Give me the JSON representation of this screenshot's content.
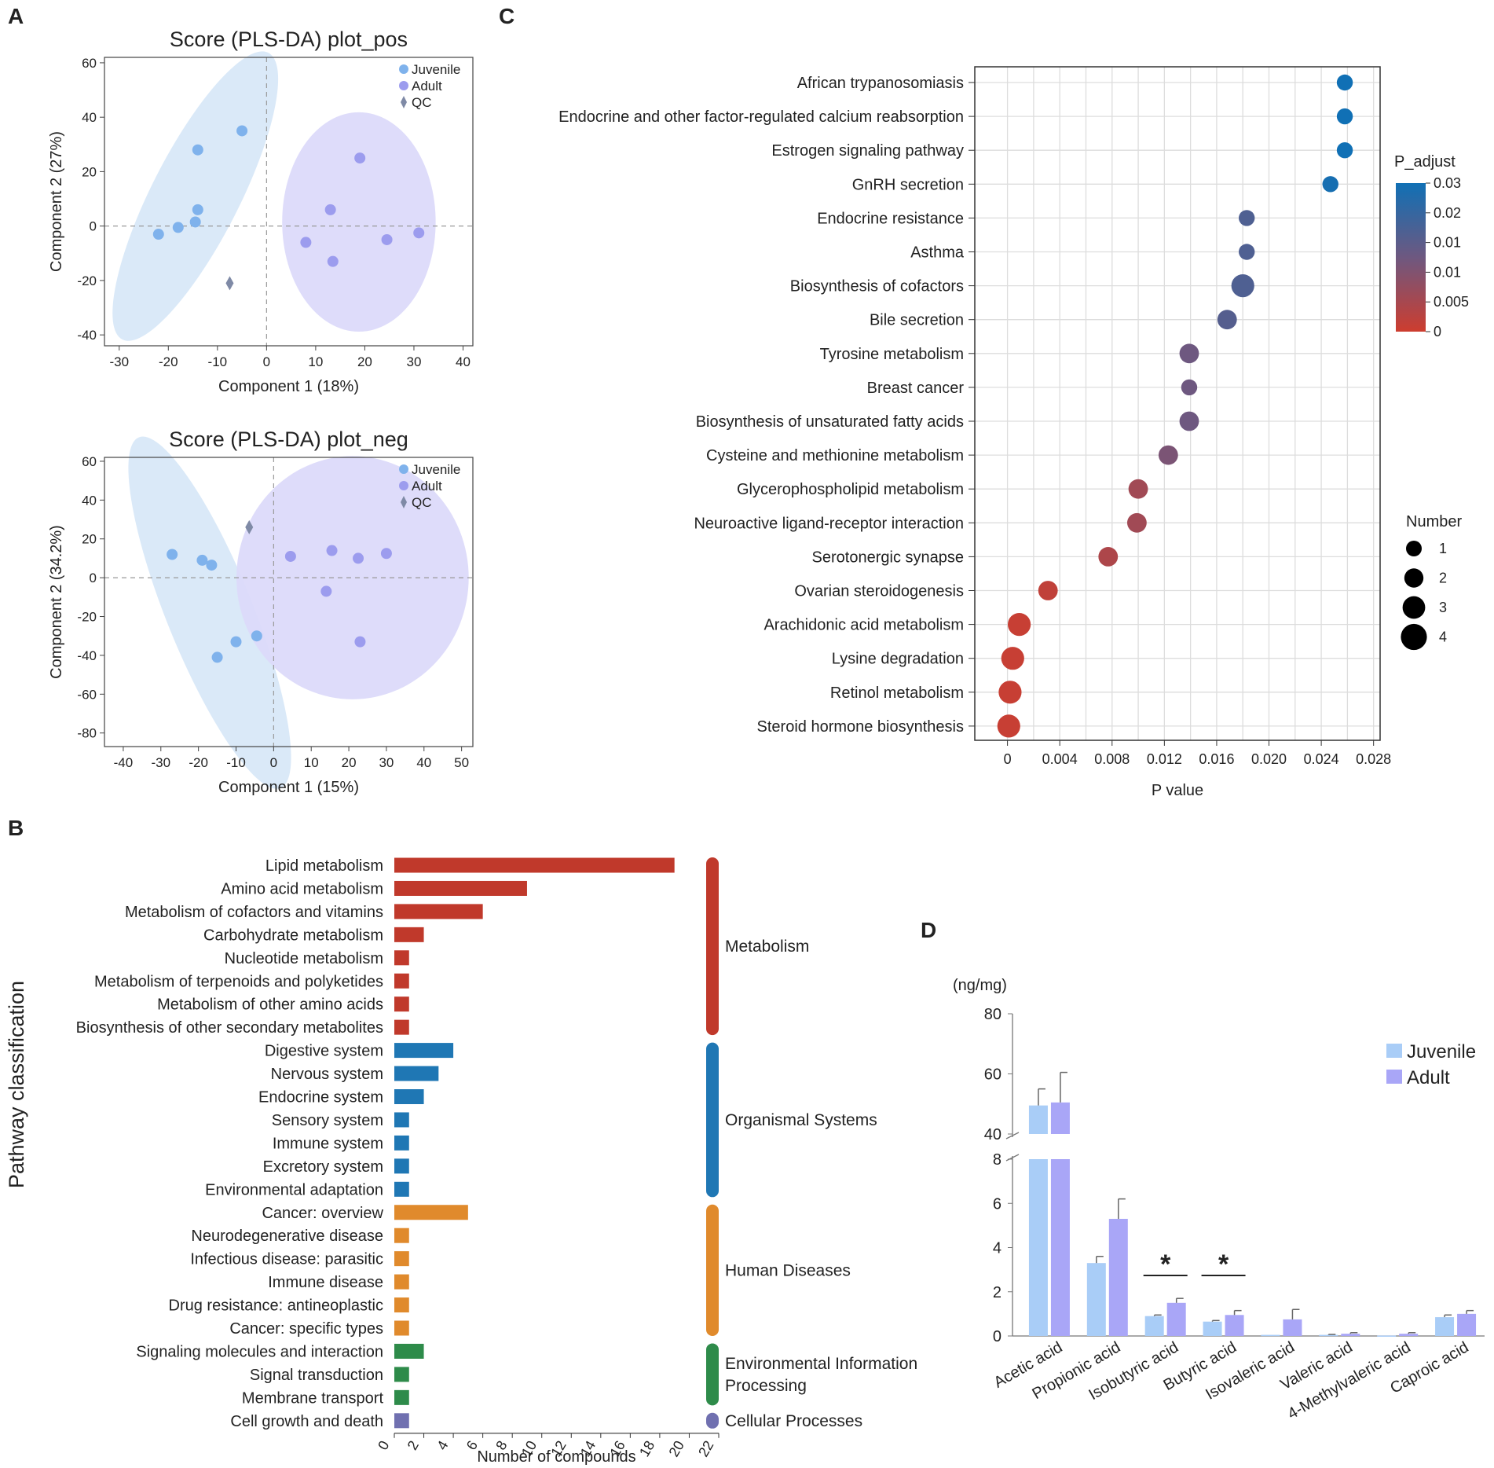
{
  "panel_labels": {
    "a": "A",
    "b": "B",
    "c": "C",
    "d": "D"
  },
  "colors": {
    "juvenile": "#7fb2ec",
    "adult": "#9c9cee",
    "juvenile_ellipse": "#d8e8f8",
    "adult_ellipse": "#dcdafa",
    "qc": "#7f8aa6",
    "metabolism": "#c0392b",
    "organismal": "#1f77b4",
    "human_diseases": "#e08a2c",
    "env_info": "#2e8b4a",
    "cellular": "#7070b0",
    "term_blue": "#1aa3d6",
    "term_black": "#222222",
    "term_red": "#d0202a",
    "bar_juvenile": "#a9cdf7",
    "bar_adult": "#a9a6f7"
  },
  "chart_data": [
    {
      "id": "pos",
      "type": "scatter",
      "title": "Score (PLS-DA) plot_pos",
      "xlabel": "Component 1 (18%)",
      "ylabel": "Component 2 (27%)",
      "xlim": [
        -33,
        42
      ],
      "ylim": [
        -44,
        62
      ],
      "xticks": [
        -30,
        -20,
        -10,
        0,
        10,
        20,
        30,
        40
      ],
      "xtick_labels": [
        "-30",
        "-20",
        "-10",
        "0",
        "10",
        "20",
        "30",
        "40"
      ],
      "yticks": [
        60,
        40,
        20,
        0,
        -20,
        -40
      ],
      "ytick_labels": [
        "60",
        "40",
        "20",
        "0",
        "-20",
        "-40"
      ],
      "legend": [
        "Juvenile",
        "Adult",
        "QC"
      ],
      "series": [
        {
          "name": "Juvenile",
          "points": [
            [
              -5,
              35
            ],
            [
              -14,
              28
            ],
            [
              -14,
              6
            ],
            [
              -14.5,
              1.5
            ],
            [
              -18,
              -0.5
            ],
            [
              -22,
              -3
            ]
          ]
        },
        {
          "name": "Adult",
          "points": [
            [
              19,
              25
            ],
            [
              13,
              6
            ],
            [
              8,
              -6
            ],
            [
              13.5,
              -13
            ],
            [
              24.5,
              -5
            ],
            [
              31,
              -2.5
            ]
          ]
        },
        {
          "name": "QC",
          "points": [
            [
              -7.5,
              -21
            ]
          ]
        }
      ],
      "ellipses": [
        {
          "group": "Juvenile",
          "cx": -14.5,
          "cy": 11,
          "rx": 44,
          "ry": 12,
          "angle": 63
        },
        {
          "group": "Adult",
          "cx": 18.8,
          "cy": 1.5,
          "rx": 21,
          "ry": 30,
          "angle": 0
        }
      ]
    },
    {
      "id": "neg",
      "type": "scatter",
      "title": "Score (PLS-DA) plot_neg",
      "xlabel": "Component 1 (15%)",
      "ylabel": "Component 2 (34.2%)",
      "xlim": [
        -45,
        53
      ],
      "ylim": [
        -87,
        62
      ],
      "xticks": [
        -40,
        -30,
        -20,
        -10,
        0,
        10,
        20,
        30,
        40,
        50
      ],
      "xtick_labels": [
        "-40",
        "-30",
        "-20",
        "-10",
        "0",
        "10",
        "20",
        "30",
        "40",
        "50"
      ],
      "yticks": [
        60,
        40,
        20,
        0,
        -20,
        -40,
        -60,
        -80
      ],
      "ytick_labels": [
        "60",
        "40",
        "20",
        "0",
        "-20",
        "-40",
        "-60",
        "-80"
      ],
      "legend": [
        "Juvenile",
        "Adult",
        "QC"
      ],
      "series": [
        {
          "name": "Juvenile",
          "points": [
            [
              -27,
              12
            ],
            [
              -19,
              9
            ],
            [
              -16.5,
              6.5
            ],
            [
              -10,
              -33
            ],
            [
              -4.5,
              -30
            ],
            [
              -15,
              -41
            ]
          ]
        },
        {
          "name": "Adult",
          "points": [
            [
              4.5,
              11
            ],
            [
              15.5,
              14
            ],
            [
              22.5,
              10
            ],
            [
              30,
              12.5
            ],
            [
              14,
              -7
            ],
            [
              23,
              -33
            ]
          ]
        },
        {
          "name": "QC",
          "points": [
            [
              -6.5,
              26
            ]
          ]
        }
      ],
      "ellipses": [
        {
          "group": "Juvenile",
          "cx": -17,
          "cy": -18,
          "rx": 70,
          "ry": 16,
          "angle": -68
        },
        {
          "group": "Adult",
          "cx": 21,
          "cy": 0,
          "rx": 43,
          "ry": 45,
          "angle": 0
        }
      ]
    },
    {
      "id": "classification",
      "type": "bar",
      "orientation": "horizontal",
      "ylabel": "Pathway classification",
      "xlabel": "Number of compounds",
      "xlim": [
        0,
        22
      ],
      "xticks": [
        0,
        2,
        4,
        6,
        8,
        10,
        12,
        14,
        16,
        18,
        20,
        22
      ],
      "xtick_labels": [
        "0",
        "2",
        "4",
        "6",
        "8",
        "10",
        "12",
        "14",
        "16",
        "18",
        "20",
        "22"
      ],
      "categories": [
        "Lipid metabolism",
        "Amino acid metabolism",
        "Metabolism of cofactors and vitamins",
        "Carbohydrate metabolism",
        "Nucleotide metabolism",
        "Metabolism of terpenoids and polyketides",
        "Metabolism of other amino acids",
        "Biosynthesis of other secondary metabolites",
        "Digestive system",
        "Nervous system",
        "Endocrine system",
        "Sensory system",
        "Immune system",
        "Excretory system",
        "Environmental adaptation",
        "Cancer: overview",
        "Neurodegenerative disease",
        "Infectious disease: parasitic",
        "Immune disease",
        "Drug resistance: antineoplastic",
        "Cancer: specific types",
        "Signaling molecules and interaction",
        "Signal transduction",
        "Membrane transport",
        "Cell growth and death"
      ],
      "values": [
        19,
        9,
        6,
        2,
        1,
        1,
        1,
        1,
        4,
        3,
        2,
        1,
        1,
        1,
        1,
        5,
        1,
        1,
        1,
        1,
        1,
        2,
        1,
        1,
        1
      ],
      "group_of": [
        0,
        0,
        0,
        0,
        0,
        0,
        0,
        0,
        1,
        1,
        1,
        1,
        1,
        1,
        1,
        2,
        2,
        2,
        2,
        2,
        2,
        3,
        3,
        3,
        4
      ],
      "groups": [
        {
          "lines": [
            "Metabolism"
          ],
          "color": "metabolism"
        },
        {
          "lines": [
            "Organismal Systems"
          ],
          "color": "organismal"
        },
        {
          "lines": [
            "Human Diseases"
          ],
          "color": "human_diseases"
        },
        {
          "lines": [
            "Environmental Information",
            "Processing"
          ],
          "color": "env_info"
        },
        {
          "lines": [
            "Cellular Processes"
          ],
          "color": "cellular"
        }
      ]
    },
    {
      "id": "enrichment",
      "type": "scatter",
      "xlabel": "P value",
      "xlim": [
        -0.0025,
        0.0285
      ],
      "xticks": [
        0,
        0.004,
        0.008,
        0.012,
        0.016,
        0.02,
        0.024,
        0.028
      ],
      "xtick_labels": [
        "0",
        "0.004",
        "0.008",
        "0.012",
        "0.016",
        "0.020",
        "0.024",
        "0.028"
      ],
      "categories": [
        "African trypanosomiasis",
        "Endocrine and other factor-regulated calcium reabsorption",
        "Estrogen signaling pathway",
        "GnRH secretion",
        "Endocrine resistance",
        "Asthma",
        "Biosynthesis of cofactors",
        "Bile secretion",
        "Tyrosine metabolism",
        "Breast cancer",
        "Biosynthesis of unsaturated fatty acids",
        "Cysteine and methionine metabolism",
        "Glycerophospholipid metabolism",
        "Neuroactive ligand-receptor interaction",
        "Serotonergic synapse",
        "Ovarian steroidogenesis",
        "Arachidonic acid metabolism",
        "Lysine degradation",
        "Retinol metabolism",
        "Steroid hormone biosynthesis"
      ],
      "label_colors": [
        "term_blue",
        "term_blue",
        "term_blue",
        "term_blue",
        "term_blue",
        "term_blue",
        "term_black",
        "term_blue",
        "term_blue",
        "term_blue",
        "term_blue",
        "term_black",
        "term_red",
        "term_blue",
        "term_blue",
        "term_blue",
        "term_blue",
        "term_blue",
        "term_black",
        "term_blue"
      ],
      "p_values": [
        0.0258,
        0.0258,
        0.0258,
        0.0247,
        0.0183,
        0.0183,
        0.018,
        0.0168,
        0.0139,
        0.0139,
        0.0139,
        0.0123,
        0.01,
        0.0099,
        0.0077,
        0.0031,
        0.0009,
        0.0004,
        0.0002,
        0.0001
      ],
      "p_adjust": [
        0.03,
        0.03,
        0.03,
        0.029,
        0.02,
        0.02,
        0.02,
        0.019,
        0.015,
        0.015,
        0.015,
        0.013,
        0.007,
        0.007,
        0.005,
        0.002,
        0.001,
        0.001,
        0.001,
        0.001
      ],
      "number": [
        2,
        2,
        2,
        2,
        2,
        2,
        4,
        3,
        3,
        2,
        3,
        3,
        3,
        3,
        3,
        3,
        4,
        4,
        4,
        4
      ],
      "colorbar_title": "P_adjust",
      "colorbar_labels": [
        "0.03",
        "0.02",
        "0.01",
        "0.01",
        "0.005",
        "0"
      ],
      "size_legend_title": "Number",
      "size_legend_labels": [
        "1",
        "2",
        "3",
        "4"
      ]
    },
    {
      "id": "scfa",
      "type": "bar",
      "unit_label": "(ng/mg)",
      "categories": [
        "Acetic acid",
        "Propionic acid",
        "Isobutyric acid",
        "Butyric acid",
        "Isovaleric acid",
        "Valeric acid",
        "4-Methylvaleric acid",
        "Caproic acid"
      ],
      "series": [
        {
          "name": "Juvenile",
          "values": [
            49.5,
            3.3,
            0.9,
            0.65,
            0.05,
            0.05,
            0.02,
            0.85
          ],
          "errors": [
            5.5,
            0.3,
            0.05,
            0.05,
            0.0,
            0.02,
            0.0,
            0.1
          ]
        },
        {
          "name": "Adult",
          "values": [
            50.5,
            5.3,
            1.5,
            0.95,
            0.75,
            0.1,
            0.1,
            1.0
          ],
          "errors": [
            10.0,
            0.9,
            0.2,
            0.2,
            0.45,
            0.05,
            0.05,
            0.15
          ]
        }
      ],
      "broken_axis": {
        "lower": [
          0,
          8
        ],
        "upper": [
          40,
          80
        ]
      },
      "yticks_lower": [
        0,
        2,
        4,
        6,
        8
      ],
      "ytick_labels_lower": [
        "0",
        "2",
        "4",
        "6",
        "8"
      ],
      "yticks_upper": [
        40,
        60,
        80
      ],
      "ytick_labels_upper": [
        "40",
        "60",
        "80"
      ],
      "significance": [
        {
          "category": "Isobutyric acid",
          "label": "*"
        },
        {
          "category": "Butyric acid",
          "label": "*"
        }
      ],
      "legend": [
        "Juvenile",
        "Adult"
      ]
    }
  ]
}
